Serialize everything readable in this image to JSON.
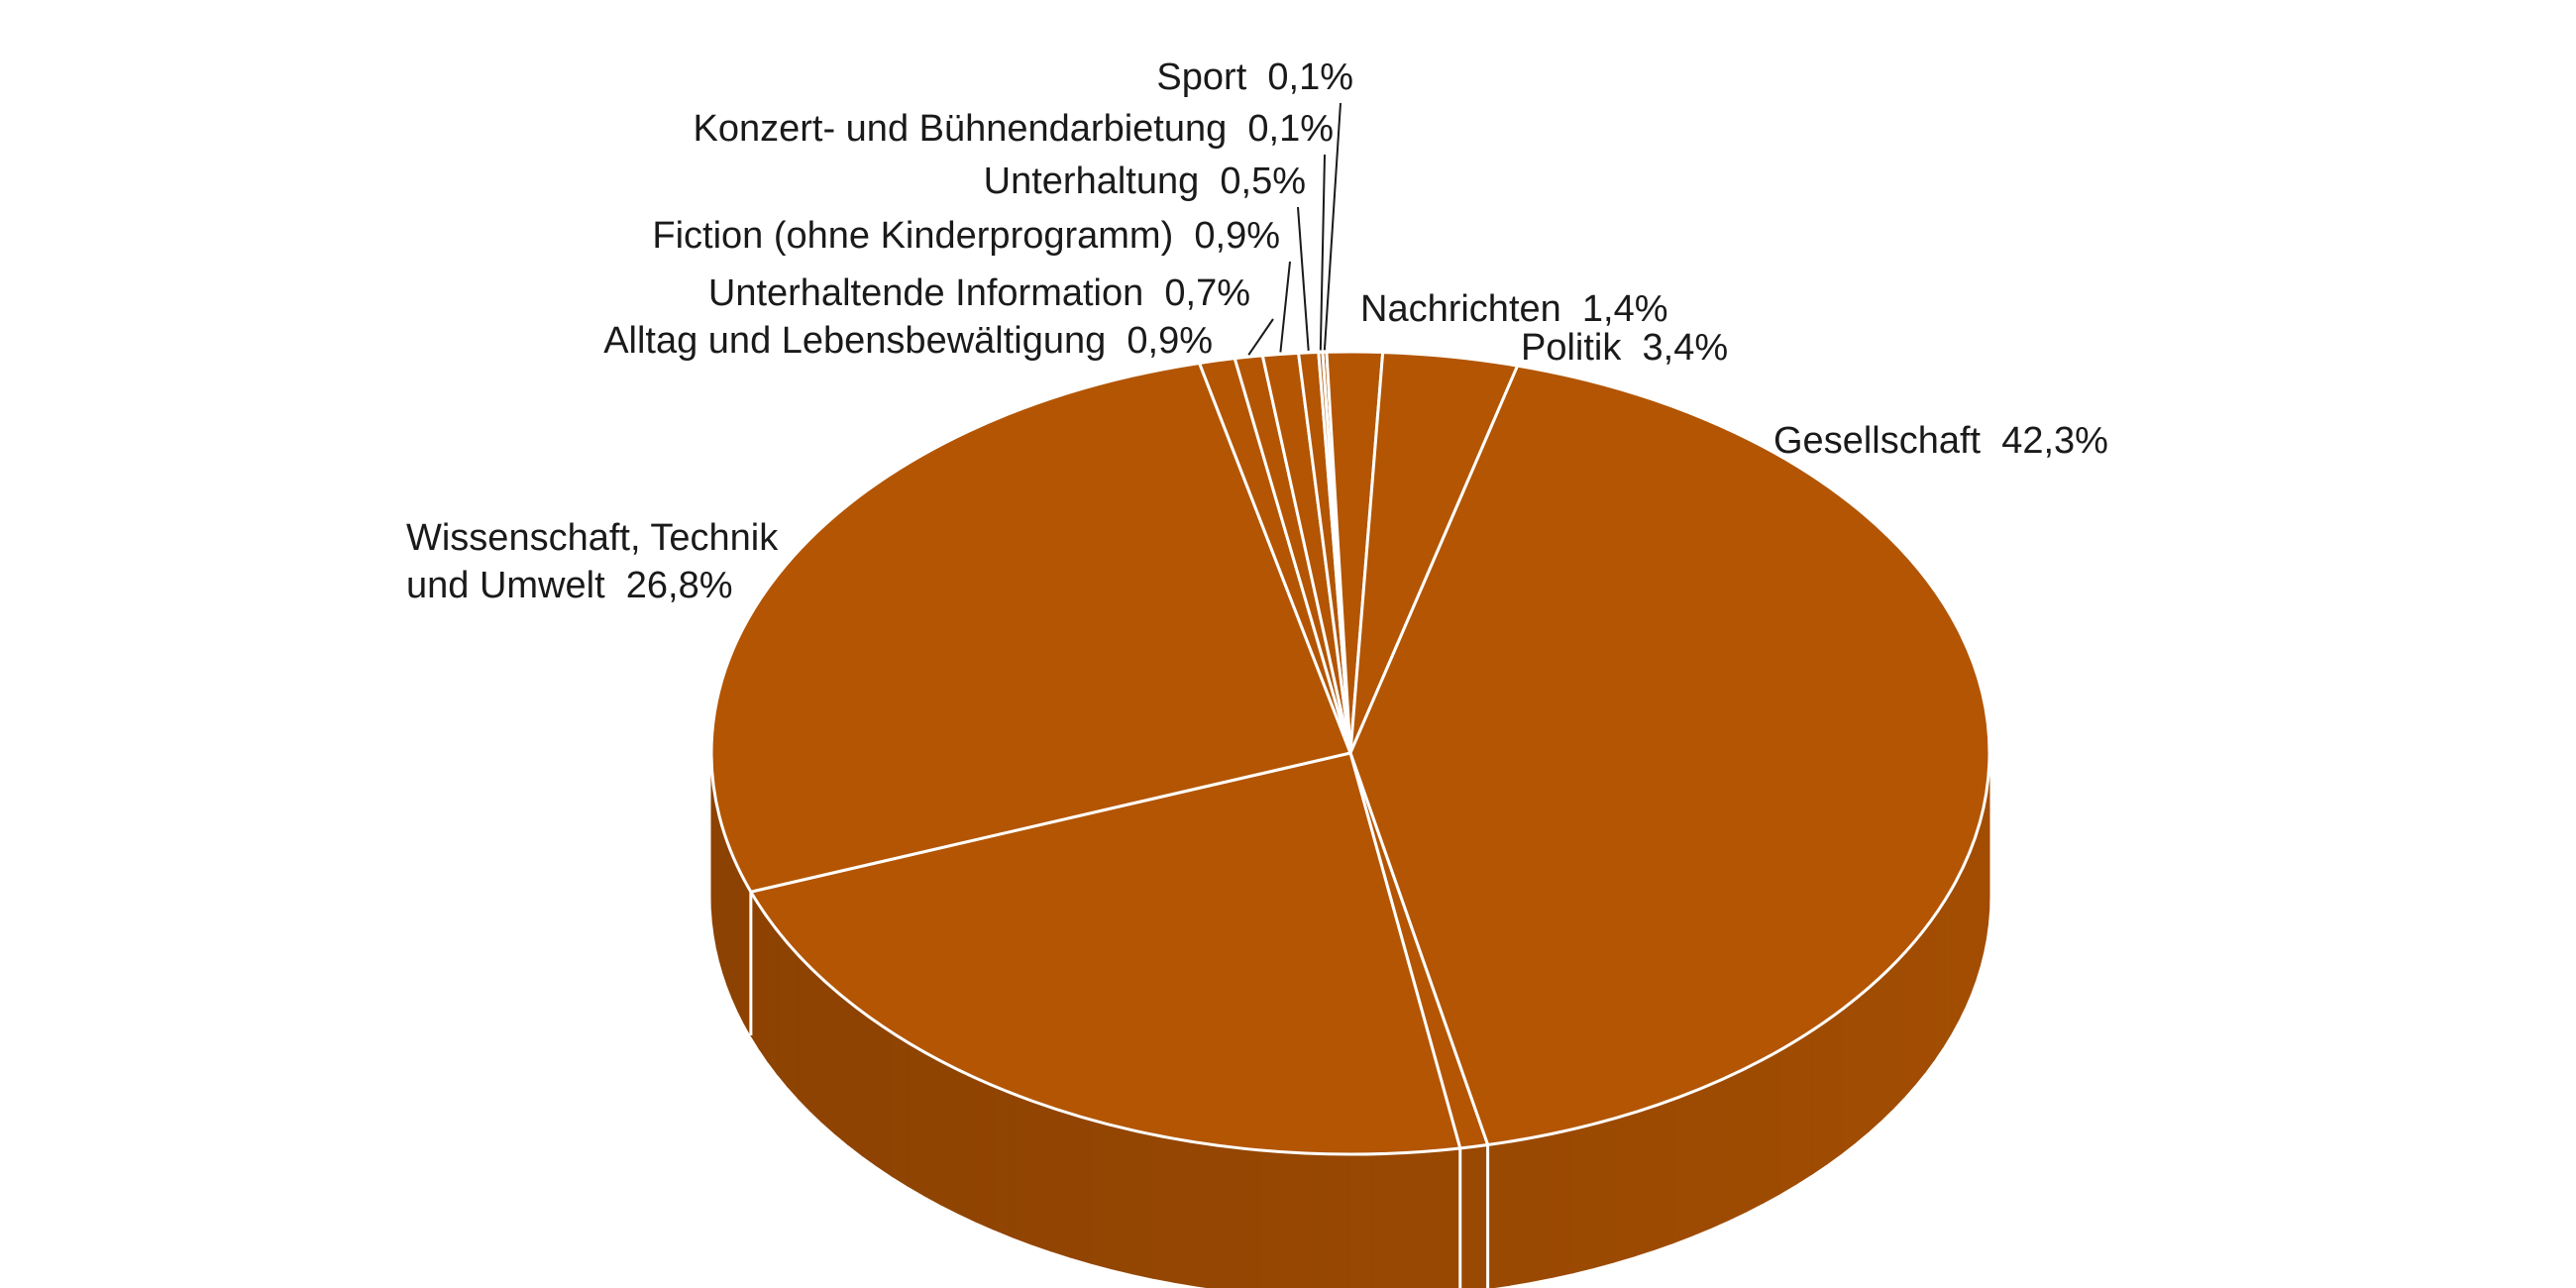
{
  "chart_data": {
    "type": "pie",
    "style": "3d",
    "colors": {
      "top": "#b35502",
      "side_light": "#a24d02",
      "side_dark": "#8c4202",
      "separator": "#ffffff"
    },
    "slices": [
      {
        "key": "sport",
        "label": "Sport",
        "value_text": "0,1%",
        "value": 0.1
      },
      {
        "key": "nachrichten",
        "label": "Nachrichten",
        "value_text": "1,4%",
        "value": 1.4
      },
      {
        "key": "politik",
        "label": "Politik",
        "value_text": "3,4%",
        "value": 3.4
      },
      {
        "key": "gesellschaft",
        "label": "Gesellschaft",
        "value_text": "42,3%",
        "value": 42.3
      },
      {
        "key": "rest",
        "label": "",
        "value_text": "",
        "value": 0.7
      },
      {
        "key": "unlabeled",
        "label": "",
        "value_text": "",
        "value": 22.1
      },
      {
        "key": "wissenschaft",
        "label": [
          "Wissenschaft, Technik",
          "und Umwelt"
        ],
        "value_text": "26,8%",
        "value": 26.8
      },
      {
        "key": "alltag",
        "label": "Alltag und Lebensbewältigung",
        "value_text": "0,9%",
        "value": 0.9
      },
      {
        "key": "unterhaltende_information",
        "label": "Unterhaltende Information",
        "value_text": "0,7%",
        "value": 0.7
      },
      {
        "key": "fiction",
        "label": "Fiction (ohne Kinderprogramm)",
        "value_text": "0,9%",
        "value": 0.9
      },
      {
        "key": "unterhaltung",
        "label": "Unterhaltung",
        "value_text": "0,5%",
        "value": 0.5
      },
      {
        "key": "konzert",
        "label": "Konzert- und Bühnendarbietung",
        "value_text": "0,1%",
        "value": 0.1
      }
    ]
  }
}
